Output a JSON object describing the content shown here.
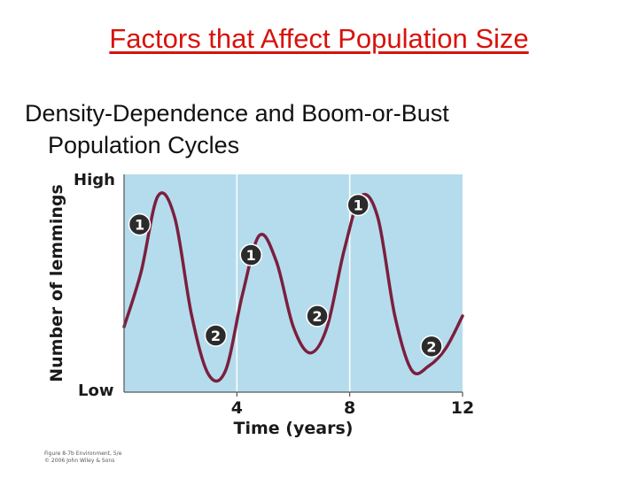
{
  "slide": {
    "title": "Factors that Affect Population Size",
    "subtitle_line1": "Density-Dependence and Boom-or-Bust",
    "subtitle_line2": "Population Cycles"
  },
  "chart_data": {
    "type": "line",
    "xlabel": "Time (years)",
    "ylabel": "Number of lemmings",
    "x_ticks": [
      4,
      8,
      12
    ],
    "xlim": [
      0,
      12
    ],
    "y_tick_labels": [
      "Low",
      "High"
    ],
    "plot_bg": "#b5dcec",
    "line_color": "#7b1f3e",
    "vertical_gridlines_at": [
      4,
      8
    ],
    "series": [
      {
        "x": [
          0,
          0.6,
          1.2,
          1.8,
          2.4,
          3.0,
          3.6,
          4.2,
          4.8,
          5.4,
          6.0,
          6.6,
          7.2,
          7.8,
          8.4,
          9.0,
          9.6,
          10.2,
          10.8,
          11.4,
          12.0
        ],
        "values": [
          0.3,
          0.55,
          0.9,
          0.8,
          0.35,
          0.08,
          0.1,
          0.45,
          0.72,
          0.6,
          0.3,
          0.18,
          0.3,
          0.65,
          0.9,
          0.8,
          0.35,
          0.1,
          0.12,
          0.2,
          0.35
        ]
      }
    ],
    "markers": [
      {
        "label": "1",
        "x": 0.55,
        "y": 0.77
      },
      {
        "label": "2",
        "x": 3.25,
        "y": 0.26
      },
      {
        "label": "1",
        "x": 4.5,
        "y": 0.63
      },
      {
        "label": "2",
        "x": 6.85,
        "y": 0.35
      },
      {
        "label": "1",
        "x": 8.3,
        "y": 0.86
      },
      {
        "label": "2",
        "x": 10.9,
        "y": 0.21
      }
    ]
  },
  "credit": {
    "line1": "Figure 8-7b Environment, 5/e",
    "line2": "© 2006 John Wiley & Sons"
  }
}
